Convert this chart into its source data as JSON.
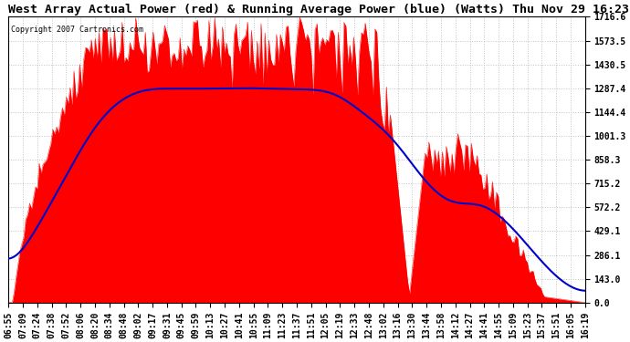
{
  "title": "West Array Actual Power (red) & Running Average Power (blue) (Watts) Thu Nov 29 16:23",
  "copyright": "Copyright 2007 Cartronics.com",
  "ylabel_right_values": [
    1716.6,
    1573.5,
    1430.5,
    1287.4,
    1144.4,
    1001.3,
    858.3,
    715.2,
    572.2,
    429.1,
    286.1,
    143.0,
    0.0
  ],
  "ymax": 1716.6,
  "ymin": 0.0,
  "background_color": "#ffffff",
  "plot_bg_color": "#ffffff",
  "grid_color": "#bbbbbb",
  "fill_color": "#ff0000",
  "line_color": "#0000cc",
  "title_fontsize": 9.5,
  "tick_fontsize": 7,
  "copyright_fontsize": 6,
  "time_labels": [
    "06:55",
    "07:09",
    "07:24",
    "07:38",
    "07:52",
    "08:06",
    "08:20",
    "08:34",
    "08:48",
    "09:02",
    "09:17",
    "09:31",
    "09:45",
    "09:59",
    "10:13",
    "10:27",
    "10:41",
    "10:55",
    "11:09",
    "11:23",
    "11:37",
    "11:51",
    "12:05",
    "12:19",
    "12:33",
    "12:48",
    "13:02",
    "13:16",
    "13:30",
    "13:44",
    "13:58",
    "14:12",
    "14:27",
    "14:41",
    "14:55",
    "15:09",
    "15:23",
    "15:37",
    "15:51",
    "16:05",
    "16:19"
  ]
}
